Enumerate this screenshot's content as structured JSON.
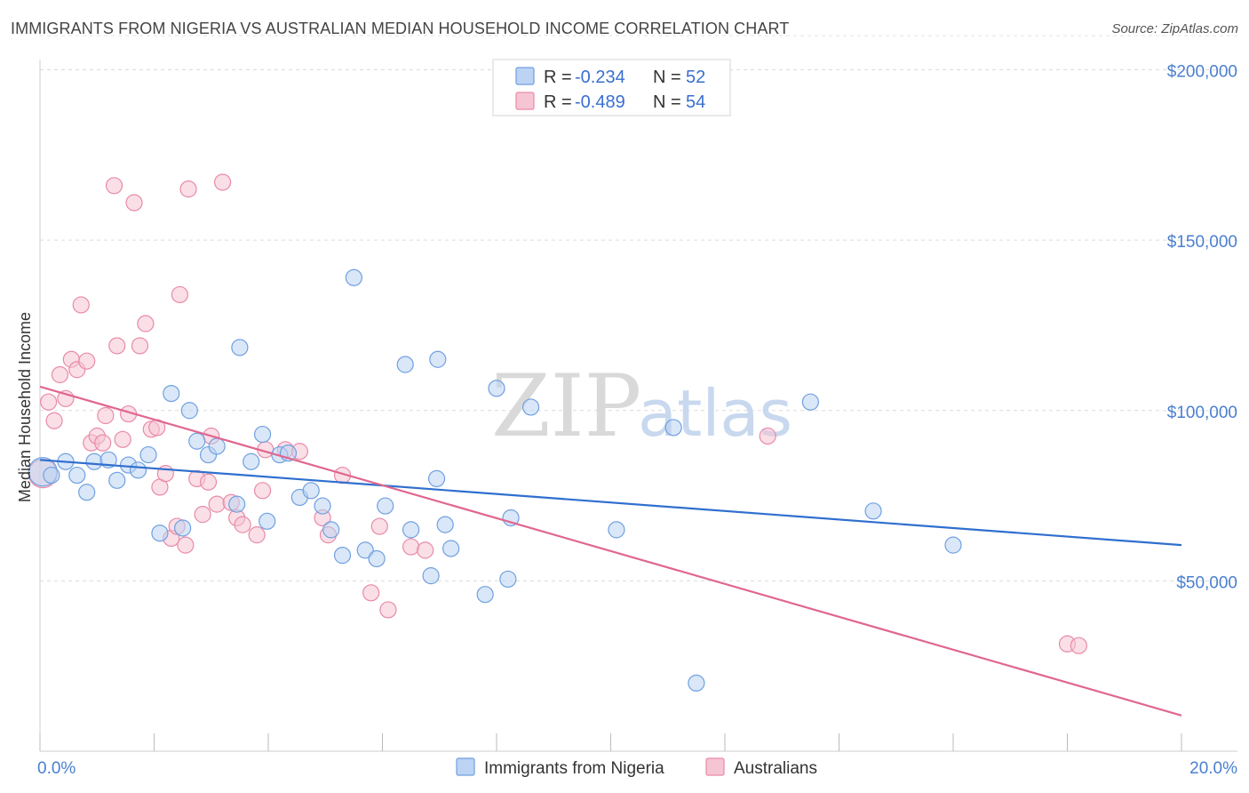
{
  "title": "IMMIGRANTS FROM NIGERIA VS AUSTRALIAN MEDIAN HOUSEHOLD INCOME CORRELATION CHART",
  "source": "Source: ZipAtlas.com",
  "watermark": {
    "zip": "ZIP",
    "atlas": "atlas"
  },
  "colors": {
    "blue": "#6fa0e0",
    "blue_fill": "#bcd3f3",
    "blue_line": "#2f6fcf",
    "pink": "#e98aa8",
    "pink_fill": "#f6c5d4",
    "pink_line": "#e0668f"
  },
  "legend": {
    "rows": [
      {
        "r_label": "R =",
        "r_value": "-0.234",
        "n_label": "N =",
        "n_value": "52"
      },
      {
        "r_label": "R =",
        "r_value": "-0.489",
        "n_label": "N =",
        "n_value": "54"
      }
    ]
  },
  "chart_data": {
    "type": "scatter",
    "title": "IMMIGRANTS FROM NIGERIA VS AUSTRALIAN MEDIAN HOUSEHOLD INCOME CORRELATION CHART",
    "xlabel": "",
    "ylabel": "Median Household Income",
    "xlim": [
      0,
      20
    ],
    "ylim": [
      0,
      210000
    ],
    "x_tick_labels": [
      "0.0%",
      "20.0%"
    ],
    "y_ticks": [
      50000,
      100000,
      150000,
      200000
    ],
    "y_tick_labels": [
      "$50,000",
      "$100,000",
      "$150,000",
      "$200,000"
    ],
    "grid": true,
    "legend_position": "top-center",
    "series": [
      {
        "name": "Immigrants from Nigeria",
        "color": "#6fa0e0",
        "points": [
          [
            0.05,
            82000
          ],
          [
            0.2,
            81000
          ],
          [
            0.45,
            85000
          ],
          [
            0.65,
            81000
          ],
          [
            0.82,
            76000
          ],
          [
            0.95,
            85000
          ],
          [
            1.2,
            85500
          ],
          [
            1.35,
            79500
          ],
          [
            1.55,
            84000
          ],
          [
            1.72,
            82500
          ],
          [
            1.9,
            87000
          ],
          [
            2.1,
            64000
          ],
          [
            2.3,
            105000
          ],
          [
            2.5,
            65500
          ],
          [
            2.62,
            100000
          ],
          [
            2.75,
            91000
          ],
          [
            2.95,
            87000
          ],
          [
            3.1,
            89500
          ],
          [
            3.45,
            72500
          ],
          [
            3.5,
            118500
          ],
          [
            3.7,
            85000
          ],
          [
            3.9,
            93000
          ],
          [
            3.98,
            67500
          ],
          [
            4.2,
            87000
          ],
          [
            4.35,
            87500
          ],
          [
            4.55,
            74500
          ],
          [
            4.75,
            76500
          ],
          [
            4.95,
            72000
          ],
          [
            5.1,
            65000
          ],
          [
            5.3,
            57500
          ],
          [
            5.5,
            139000
          ],
          [
            5.7,
            59000
          ],
          [
            5.9,
            56500
          ],
          [
            6.05,
            72000
          ],
          [
            6.4,
            113500
          ],
          [
            6.5,
            65000
          ],
          [
            6.85,
            51500
          ],
          [
            6.95,
            80000
          ],
          [
            6.97,
            115000
          ],
          [
            7.1,
            66500
          ],
          [
            7.2,
            59500
          ],
          [
            7.8,
            46000
          ],
          [
            8.0,
            106500
          ],
          [
            8.2,
            50500
          ],
          [
            8.25,
            68500
          ],
          [
            8.6,
            101000
          ],
          [
            10.1,
            65000
          ],
          [
            11.1,
            95000
          ],
          [
            11.5,
            20000
          ],
          [
            13.5,
            102500
          ],
          [
            14.6,
            70500
          ],
          [
            16.0,
            60500
          ]
        ],
        "trend": {
          "x": [
            0,
            20
          ],
          "y": [
            85500,
            60500
          ]
        }
      },
      {
        "name": "Australians",
        "color": "#e98aa8",
        "points": [
          [
            0.05,
            81500
          ],
          [
            0.15,
            102500
          ],
          [
            0.25,
            97000
          ],
          [
            0.35,
            110500
          ],
          [
            0.45,
            103500
          ],
          [
            0.55,
            115000
          ],
          [
            0.65,
            112000
          ],
          [
            0.72,
            131000
          ],
          [
            0.82,
            114500
          ],
          [
            0.9,
            90500
          ],
          [
            1.0,
            92500
          ],
          [
            1.1,
            90500
          ],
          [
            1.15,
            98500
          ],
          [
            1.3,
            166000
          ],
          [
            1.35,
            119000
          ],
          [
            1.45,
            91500
          ],
          [
            1.55,
            99000
          ],
          [
            1.65,
            161000
          ],
          [
            1.75,
            119000
          ],
          [
            1.85,
            125500
          ],
          [
            1.95,
            94500
          ],
          [
            2.05,
            95000
          ],
          [
            2.1,
            77500
          ],
          [
            2.2,
            81500
          ],
          [
            2.3,
            62500
          ],
          [
            2.4,
            66000
          ],
          [
            2.45,
            134000
          ],
          [
            2.55,
            60500
          ],
          [
            2.6,
            165000
          ],
          [
            2.75,
            80000
          ],
          [
            2.85,
            69500
          ],
          [
            2.95,
            79000
          ],
          [
            3.0,
            92500
          ],
          [
            3.1,
            72500
          ],
          [
            3.2,
            167000
          ],
          [
            3.35,
            73000
          ],
          [
            3.45,
            68500
          ],
          [
            3.55,
            66500
          ],
          [
            3.8,
            63500
          ],
          [
            3.9,
            76500
          ],
          [
            3.95,
            88500
          ],
          [
            4.3,
            88500
          ],
          [
            4.55,
            88000
          ],
          [
            4.95,
            68500
          ],
          [
            5.05,
            63500
          ],
          [
            5.3,
            81000
          ],
          [
            5.8,
            46500
          ],
          [
            5.95,
            66000
          ],
          [
            6.1,
            41500
          ],
          [
            6.5,
            60000
          ],
          [
            6.75,
            59000
          ],
          [
            12.75,
            92500
          ],
          [
            18.0,
            31500
          ],
          [
            18.2,
            31000
          ]
        ],
        "trend": {
          "x": [
            0,
            20
          ],
          "y": [
            107000,
            10500
          ]
        }
      }
    ]
  }
}
